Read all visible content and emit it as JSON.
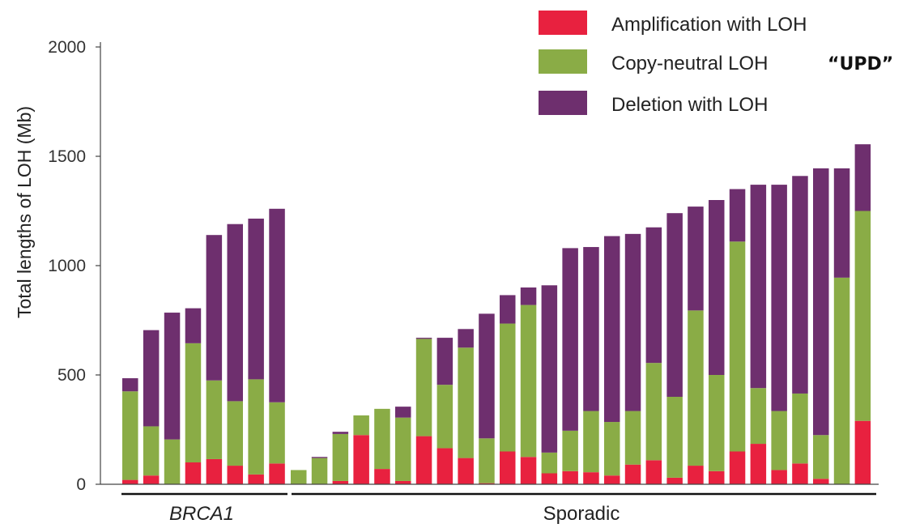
{
  "chart_data": {
    "type": "bar",
    "stacked": true,
    "ylabel": "Total lengths of LOH (Mb)",
    "ylim": [
      0,
      2000
    ],
    "yticks": [
      0,
      500,
      1000,
      1500,
      2000
    ],
    "groups": [
      {
        "label": "BRCA1",
        "italic": true,
        "count": 8
      },
      {
        "label": "Sporadic",
        "italic": false,
        "count": 28
      }
    ],
    "legend": [
      {
        "name": "Amplification with LOH",
        "color": "#e8213f"
      },
      {
        "name": "Copy-neutral LOH",
        "color": "#8aac46",
        "note": "“UPD”"
      },
      {
        "name": "Deletion with LOH",
        "color": "#6e2f6e"
      }
    ],
    "series": [
      {
        "name": "Amplification with LOH",
        "color": "#e8213f",
        "values": [
          20,
          40,
          0,
          100,
          115,
          85,
          45,
          95,
          0,
          0,
          15,
          225,
          70,
          15,
          220,
          165,
          120,
          5,
          150,
          125,
          50,
          60,
          55,
          40,
          90,
          110,
          30,
          85,
          60,
          150,
          185,
          65,
          95,
          25,
          0,
          290
        ]
      },
      {
        "name": "Copy-neutral LOH",
        "color": "#8aac46",
        "values": [
          405,
          225,
          205,
          545,
          360,
          295,
          435,
          280,
          65,
          120,
          215,
          90,
          275,
          290,
          445,
          290,
          505,
          205,
          585,
          695,
          95,
          185,
          280,
          245,
          245,
          445,
          370,
          710,
          440,
          960,
          255,
          270,
          320,
          200,
          945,
          960
        ]
      },
      {
        "name": "Deletion with LOH",
        "color": "#6e2f6e",
        "values": [
          60,
          440,
          580,
          160,
          665,
          810,
          735,
          885,
          0,
          5,
          10,
          0,
          0,
          50,
          5,
          215,
          85,
          570,
          130,
          80,
          765,
          835,
          750,
          850,
          810,
          620,
          840,
          475,
          800,
          240,
          930,
          1035,
          995,
          1220,
          500,
          305
        ]
      }
    ]
  }
}
